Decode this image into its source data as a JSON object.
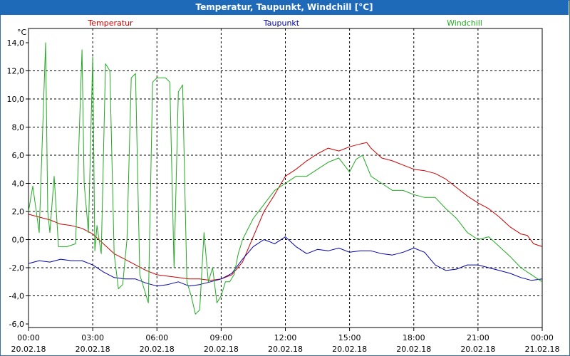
{
  "window": {
    "title": "Temperatur, Taupunkt, Windchill [°C]"
  },
  "chart_data": {
    "type": "line",
    "title": "Temperatur, Taupunkt, Windchill [°C]",
    "ylabel": "°C",
    "xlabel": "",
    "ylim": [
      -6.0,
      14.0
    ],
    "xlim": [
      0,
      24
    ],
    "grid": true,
    "legend_position": "top",
    "y_ticks": [
      "14,0",
      "12,0",
      "10,0",
      "8,0",
      "6,0",
      "4,0",
      "2,0",
      "0,0",
      "-2,0",
      "-4,0",
      "-6,0"
    ],
    "x_ticks": [
      {
        "time": "00:00",
        "date": "20.02.18"
      },
      {
        "time": "03:00",
        "date": "20.02.18"
      },
      {
        "time": "06:00",
        "date": "20.02.18"
      },
      {
        "time": "09:00",
        "date": "20.02.18"
      },
      {
        "time": "12:00",
        "date": "20.02.18"
      },
      {
        "time": "15:00",
        "date": "20.02.18"
      },
      {
        "time": "18:00",
        "date": "20.02.18"
      },
      {
        "time": "21:00",
        "date": "20.02.18"
      },
      {
        "time": "00:00",
        "date": "21.02.18"
      }
    ],
    "series": [
      {
        "name": "Temperatur",
        "color": "#cc0000",
        "x": [
          0,
          0.5,
          1,
          1.5,
          2,
          2.5,
          3,
          3.5,
          4,
          4.5,
          5,
          5.5,
          6,
          6.5,
          7,
          7.5,
          8,
          8.5,
          9,
          9.5,
          10,
          10.5,
          11,
          11.5,
          12,
          12.5,
          13,
          13.5,
          14,
          14.5,
          15,
          15.5,
          15.8,
          16,
          16.5,
          17,
          17.5,
          18,
          18.5,
          19,
          19.5,
          20,
          20.5,
          21,
          21.5,
          22,
          22.5,
          23,
          23.3,
          23.6,
          24
        ],
        "y": [
          1.8,
          1.6,
          1.4,
          1.1,
          1.0,
          0.8,
          0.4,
          -0.3,
          -1.0,
          -1.4,
          -1.8,
          -2.2,
          -2.5,
          -2.6,
          -2.7,
          -2.8,
          -2.8,
          -2.9,
          -2.8,
          -2.5,
          -1.6,
          0.2,
          2.0,
          3.2,
          4.5,
          5.0,
          5.6,
          6.1,
          6.5,
          6.3,
          6.6,
          6.8,
          6.9,
          6.5,
          5.8,
          5.6,
          5.3,
          5.0,
          4.9,
          4.7,
          4.3,
          3.7,
          3.1,
          2.6,
          2.2,
          1.6,
          0.9,
          0.4,
          0.3,
          -0.3,
          -0.5
        ]
      },
      {
        "name": "Taupunkt",
        "color": "#0000aa",
        "x": [
          0,
          0.5,
          1,
          1.5,
          2,
          2.5,
          3,
          3.5,
          4,
          4.5,
          5,
          5.5,
          6,
          6.5,
          7,
          7.5,
          8,
          8.5,
          9,
          9.5,
          10,
          10.5,
          11,
          11.5,
          12,
          12.5,
          13,
          13.5,
          14,
          14.5,
          15,
          15.5,
          16,
          16.5,
          17,
          17.5,
          18,
          18.5,
          19,
          19.5,
          20,
          20.5,
          21,
          21.5,
          22,
          22.5,
          23,
          23.5,
          24
        ],
        "y": [
          -1.7,
          -1.5,
          -1.6,
          -1.4,
          -1.5,
          -1.5,
          -1.8,
          -2.3,
          -2.7,
          -2.8,
          -2.8,
          -3.1,
          -3.3,
          -3.2,
          -3.0,
          -3.3,
          -3.2,
          -3.0,
          -2.8,
          -2.4,
          -1.4,
          -0.5,
          0.0,
          -0.3,
          0.2,
          -0.5,
          -1.0,
          -0.7,
          -0.8,
          -0.6,
          -0.9,
          -0.8,
          -0.8,
          -1.0,
          -1.1,
          -0.9,
          -0.6,
          -0.9,
          -1.8,
          -2.2,
          -2.1,
          -1.8,
          -1.8,
          -2.0,
          -2.2,
          -2.4,
          -2.7,
          -2.9,
          -2.8
        ]
      },
      {
        "name": "Windchill",
        "color": "#22aa22",
        "x": [
          0,
          0.2,
          0.5,
          0.8,
          0.9,
          1.0,
          1.2,
          1.4,
          1.6,
          1.8,
          2.2,
          2.5,
          2.6,
          2.8,
          3.0,
          3.1,
          3.2,
          3.4,
          3.6,
          3.8,
          4.0,
          4.2,
          4.4,
          4.6,
          4.8,
          5.0,
          5.2,
          5.4,
          5.6,
          5.8,
          6.0,
          6.2,
          6.4,
          6.6,
          6.8,
          7.0,
          7.2,
          7.4,
          7.6,
          7.8,
          8.0,
          8.2,
          8.4,
          8.6,
          8.8,
          9.0,
          9.2,
          9.4,
          9.6,
          9.8,
          10.0,
          10.5,
          11.0,
          11.5,
          12.0,
          12.5,
          13.0,
          13.5,
          14.0,
          14.5,
          15.0,
          15.3,
          15.6,
          16.0,
          16.5,
          17.0,
          17.5,
          18.0,
          18.5,
          19.0,
          19.5,
          20.0,
          20.5,
          21.0,
          21.5,
          22.0,
          22.5,
          23.0,
          23.5,
          24.0
        ],
        "y": [
          2.0,
          3.8,
          0.5,
          14.0,
          2.0,
          0.5,
          4.5,
          -0.5,
          -0.5,
          -0.5,
          -0.3,
          13.5,
          4.0,
          0.5,
          13.0,
          -0.8,
          1.0,
          -1.0,
          12.5,
          12.0,
          -1.0,
          -3.5,
          -3.2,
          0.0,
          11.5,
          11.8,
          -2.5,
          -3.5,
          -4.5,
          11.2,
          11.5,
          11.5,
          11.5,
          11.2,
          -2.0,
          10.5,
          11.0,
          -3.0,
          -4.0,
          -5.3,
          -5.0,
          0.5,
          -3.0,
          -2.0,
          -4.5,
          -4.0,
          -3.0,
          -3.0,
          -2.5,
          -1.0,
          0.0,
          1.5,
          2.5,
          3.5,
          4.0,
          4.5,
          4.5,
          5.0,
          5.5,
          5.8,
          4.8,
          5.7,
          6.0,
          4.5,
          4.0,
          3.5,
          3.5,
          3.2,
          3.0,
          3.0,
          2.2,
          1.5,
          0.5,
          0.0,
          0.2,
          -0.5,
          -1.2,
          -2.0,
          -2.5,
          -3.0
        ]
      }
    ]
  }
}
